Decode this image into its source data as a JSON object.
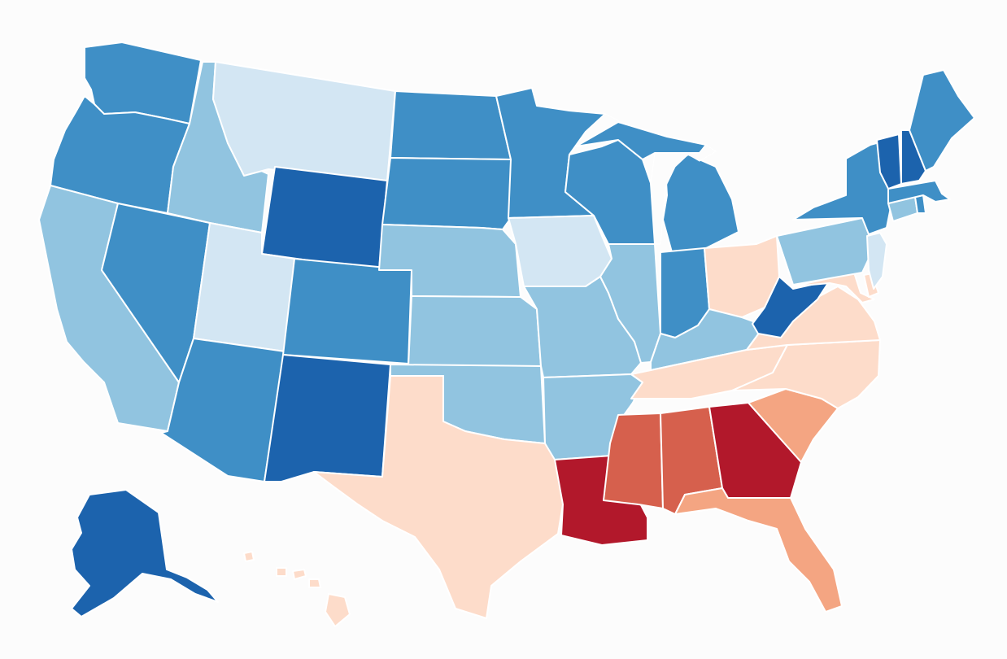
{
  "map": {
    "type": "choropleth",
    "region": "United States",
    "legend": "none",
    "palette": {
      "dark_blue": "#1c63ad",
      "blue": "#3f8fc6",
      "light_blue": "#91c4e0",
      "pale_blue": "#d3e6f3",
      "pale_orange": "#fddcca",
      "orange": "#f4a582",
      "red_orange": "#d6604d",
      "red": "#b2182b"
    },
    "states": [
      {
        "code": "WA",
        "category": "blue"
      },
      {
        "code": "OR",
        "category": "blue"
      },
      {
        "code": "CA",
        "category": "light_blue"
      },
      {
        "code": "NV",
        "category": "blue"
      },
      {
        "code": "ID",
        "category": "light_blue"
      },
      {
        "code": "MT",
        "category": "pale_blue"
      },
      {
        "code": "WY",
        "category": "dark_blue"
      },
      {
        "code": "UT",
        "category": "pale_blue"
      },
      {
        "code": "AZ",
        "category": "blue"
      },
      {
        "code": "CO",
        "category": "blue"
      },
      {
        "code": "NM",
        "category": "dark_blue"
      },
      {
        "code": "ND",
        "category": "blue"
      },
      {
        "code": "SD",
        "category": "blue"
      },
      {
        "code": "NE",
        "category": "light_blue"
      },
      {
        "code": "KS",
        "category": "light_blue"
      },
      {
        "code": "OK",
        "category": "light_blue"
      },
      {
        "code": "TX",
        "category": "pale_orange"
      },
      {
        "code": "MN",
        "category": "blue"
      },
      {
        "code": "IA",
        "category": "pale_blue"
      },
      {
        "code": "MO",
        "category": "light_blue"
      },
      {
        "code": "AR",
        "category": "light_blue"
      },
      {
        "code": "LA",
        "category": "red"
      },
      {
        "code": "WI",
        "category": "blue"
      },
      {
        "code": "MI",
        "category": "blue"
      },
      {
        "code": "IL",
        "category": "light_blue"
      },
      {
        "code": "IN",
        "category": "blue"
      },
      {
        "code": "OH",
        "category": "pale_orange"
      },
      {
        "code": "KY",
        "category": "light_blue"
      },
      {
        "code": "TN",
        "category": "pale_orange"
      },
      {
        "code": "MS",
        "category": "red_orange"
      },
      {
        "code": "AL",
        "category": "red_orange"
      },
      {
        "code": "GA",
        "category": "red"
      },
      {
        "code": "FL",
        "category": "orange"
      },
      {
        "code": "SC",
        "category": "orange"
      },
      {
        "code": "NC",
        "category": "pale_orange"
      },
      {
        "code": "VA",
        "category": "pale_orange"
      },
      {
        "code": "WV",
        "category": "dark_blue"
      },
      {
        "code": "MD",
        "category": "pale_orange"
      },
      {
        "code": "DE",
        "category": "pale_orange"
      },
      {
        "code": "PA",
        "category": "light_blue"
      },
      {
        "code": "NJ",
        "category": "pale_blue"
      },
      {
        "code": "NY",
        "category": "blue"
      },
      {
        "code": "CT",
        "category": "light_blue"
      },
      {
        "code": "RI",
        "category": "blue"
      },
      {
        "code": "MA",
        "category": "blue"
      },
      {
        "code": "VT",
        "category": "dark_blue"
      },
      {
        "code": "NH",
        "category": "dark_blue"
      },
      {
        "code": "ME",
        "category": "blue"
      },
      {
        "code": "AK",
        "category": "dark_blue"
      },
      {
        "code": "HI",
        "category": "pale_orange"
      }
    ]
  }
}
